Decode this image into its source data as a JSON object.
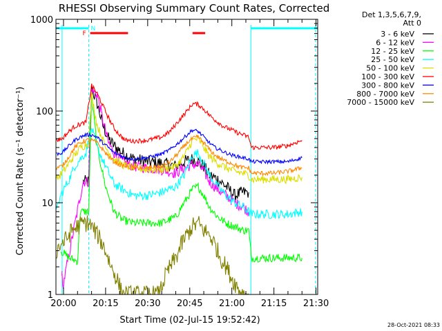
{
  "chart_data": {
    "type": "line",
    "title": "RHESSI Observing Summary Count Rates, Corrected",
    "xlabel": "Start Time (02-Jul-15 19:52:42)",
    "ylabel": "Corrected Count Rate (s⁻¹ detector⁻¹)",
    "y_scale": "log",
    "ylim": [
      1,
      1000
    ],
    "xlim_minutes": [
      -2.7,
      90.6
    ],
    "x_ticks": [
      {
        "label": "20:00",
        "min": 0
      },
      {
        "label": "20:15",
        "min": 15
      },
      {
        "label": "20:30",
        "min": 30
      },
      {
        "label": "20:45",
        "min": 45
      },
      {
        "label": "21:00",
        "min": 60
      },
      {
        "label": "21:15",
        "min": 75
      },
      {
        "label": "21:30",
        "min": 90
      }
    ],
    "y_ticks": [
      {
        "label": "1",
        "value": 1
      },
      {
        "label": "10",
        "value": 10
      },
      {
        "label": "100",
        "value": 100
      },
      {
        "label": "1000",
        "value": 1000
      }
    ],
    "legend_header": [
      "Det 1,3,5,6,7,9,",
      "Att 0"
    ],
    "legend_position": "right",
    "series": [
      {
        "name": "3 - 6 keV",
        "color": "#000000",
        "points": [
          [
            7,
            17
          ],
          [
            9,
            17
          ],
          [
            10,
            180
          ],
          [
            12,
            120
          ],
          [
            14,
            70
          ],
          [
            16,
            50
          ],
          [
            18,
            42
          ],
          [
            21,
            35
          ],
          [
            25,
            30
          ],
          [
            30,
            28
          ],
          [
            35,
            27
          ],
          [
            40,
            25
          ],
          [
            43,
            28
          ],
          [
            46,
            30
          ],
          [
            48,
            28
          ],
          [
            50,
            25
          ],
          [
            52,
            20
          ],
          [
            55,
            18
          ],
          [
            58,
            15
          ],
          [
            61,
            12
          ],
          [
            64,
            13
          ],
          [
            66,
            13
          ]
        ]
      },
      {
        "name": "6 - 12 keV",
        "color": "#ff00ff",
        "points": [
          [
            -0.5,
            1.5
          ],
          [
            -0.3,
            1.2
          ],
          [
            7,
            17
          ],
          [
            9,
            17
          ],
          [
            10,
            170
          ],
          [
            12,
            150
          ],
          [
            14,
            80
          ],
          [
            16,
            45
          ],
          [
            18,
            35
          ],
          [
            21,
            28
          ],
          [
            25,
            25
          ],
          [
            30,
            24
          ],
          [
            35,
            23
          ],
          [
            40,
            21
          ],
          [
            43,
            24
          ],
          [
            46,
            26
          ],
          [
            48,
            26
          ],
          [
            50,
            22
          ],
          [
            52,
            17
          ],
          [
            55,
            14
          ],
          [
            58,
            12
          ],
          [
            61,
            10
          ],
          [
            64,
            9
          ],
          [
            66,
            8
          ]
        ]
      },
      {
        "name": "12 - 25 keV",
        "color": "#00ff00",
        "points": [
          [
            -1,
            3
          ],
          [
            2,
            2.5
          ],
          [
            5,
            2.3
          ],
          [
            6,
            8
          ],
          [
            7,
            8
          ],
          [
            8,
            8
          ],
          [
            9,
            8
          ],
          [
            10,
            150
          ],
          [
            12,
            40
          ],
          [
            15,
            15
          ],
          [
            18,
            8
          ],
          [
            21,
            6.5
          ],
          [
            25,
            6
          ],
          [
            30,
            6
          ],
          [
            35,
            6
          ],
          [
            40,
            7
          ],
          [
            43,
            10
          ],
          [
            46,
            14
          ],
          [
            48,
            15
          ],
          [
            50,
            12
          ],
          [
            52,
            9
          ],
          [
            55,
            7
          ],
          [
            58,
            6
          ],
          [
            61,
            5.5
          ],
          [
            64,
            5
          ],
          [
            66,
            5
          ],
          [
            67,
            2.5
          ],
          [
            80,
            2.5
          ],
          [
            85,
            2.5
          ]
        ]
      },
      {
        "name": "25 - 50 keV",
        "color": "#00ffff",
        "points": [
          [
            -2.5,
            8
          ],
          [
            -1,
            12
          ],
          [
            2,
            18
          ],
          [
            4,
            25
          ],
          [
            6,
            30
          ],
          [
            8,
            35
          ],
          [
            10,
            65
          ],
          [
            12,
            40
          ],
          [
            15,
            25
          ],
          [
            18,
            16
          ],
          [
            21,
            14
          ],
          [
            25,
            12
          ],
          [
            30,
            12
          ],
          [
            35,
            13
          ],
          [
            40,
            15
          ],
          [
            43,
            20
          ],
          [
            46,
            33
          ],
          [
            48,
            35
          ],
          [
            50,
            27
          ],
          [
            52,
            20
          ],
          [
            55,
            15
          ],
          [
            58,
            12
          ],
          [
            61,
            10
          ],
          [
            64,
            9
          ],
          [
            66,
            8
          ],
          [
            67,
            7.5
          ],
          [
            80,
            7.5
          ],
          [
            85,
            8
          ]
        ]
      },
      {
        "name": "50 - 100 keV",
        "color": "#dddd00",
        "points": [
          [
            -2.5,
            18
          ],
          [
            0,
            22
          ],
          [
            3,
            30
          ],
          [
            6,
            40
          ],
          [
            9,
            45
          ],
          [
            10,
            150
          ],
          [
            12,
            70
          ],
          [
            15,
            40
          ],
          [
            18,
            30
          ],
          [
            21,
            26
          ],
          [
            25,
            24
          ],
          [
            30,
            23
          ],
          [
            35,
            23
          ],
          [
            40,
            25
          ],
          [
            43,
            32
          ],
          [
            46,
            48
          ],
          [
            48,
            50
          ],
          [
            50,
            40
          ],
          [
            52,
            32
          ],
          [
            55,
            27
          ],
          [
            58,
            24
          ],
          [
            61,
            22
          ],
          [
            64,
            21
          ],
          [
            66,
            20
          ],
          [
            67,
            18
          ],
          [
            80,
            18
          ],
          [
            85,
            19
          ]
        ]
      },
      {
        "name": "100 - 300 keV",
        "color": "#ff0000",
        "points": [
          [
            -2.5,
            48
          ],
          [
            -0.5,
            50
          ],
          [
            2,
            60
          ],
          [
            4,
            68
          ],
          [
            6,
            72
          ],
          [
            8,
            75
          ],
          [
            10,
            190
          ],
          [
            12,
            155
          ],
          [
            14,
            115
          ],
          [
            16,
            85
          ],
          [
            18,
            65
          ],
          [
            20,
            55
          ],
          [
            22,
            48
          ],
          [
            25,
            47
          ],
          [
            30,
            48
          ],
          [
            35,
            52
          ],
          [
            38,
            60
          ],
          [
            41,
            78
          ],
          [
            44,
            100
          ],
          [
            46,
            120
          ],
          [
            48,
            118
          ],
          [
            50,
            105
          ],
          [
            52,
            90
          ],
          [
            54,
            80
          ],
          [
            57,
            68
          ],
          [
            60,
            62
          ],
          [
            62,
            58
          ],
          [
            64,
            55
          ],
          [
            66,
            52
          ],
          [
            67,
            40
          ],
          [
            75,
            40
          ],
          [
            80,
            42
          ],
          [
            85,
            48
          ]
        ]
      },
      {
        "name": "300 - 800 keV",
        "color": "#0000ff",
        "points": [
          [
            -2.5,
            34
          ],
          [
            -0.5,
            35
          ],
          [
            2,
            42
          ],
          [
            4,
            48
          ],
          [
            6,
            52
          ],
          [
            8,
            55
          ],
          [
            10,
            55
          ],
          [
            12,
            52
          ],
          [
            14,
            45
          ],
          [
            16,
            40
          ],
          [
            18,
            35
          ],
          [
            20,
            33
          ],
          [
            22,
            31
          ],
          [
            25,
            30
          ],
          [
            30,
            31
          ],
          [
            35,
            34
          ],
          [
            38,
            38
          ],
          [
            41,
            45
          ],
          [
            44,
            55
          ],
          [
            46,
            62
          ],
          [
            48,
            60
          ],
          [
            50,
            52
          ],
          [
            52,
            45
          ],
          [
            54,
            40
          ],
          [
            57,
            36
          ],
          [
            60,
            33
          ],
          [
            62,
            32
          ],
          [
            64,
            31
          ],
          [
            66,
            30
          ],
          [
            67,
            28
          ],
          [
            75,
            28
          ],
          [
            80,
            28
          ],
          [
            85,
            31
          ]
        ]
      },
      {
        "name": "800 - 7000 keV",
        "color": "#ff8800",
        "points": [
          [
            -2.5,
            24
          ],
          [
            -0.5,
            25
          ],
          [
            2,
            32
          ],
          [
            4,
            40
          ],
          [
            6,
            45
          ],
          [
            8,
            48
          ],
          [
            10,
            48
          ],
          [
            12,
            45
          ],
          [
            14,
            38
          ],
          [
            16,
            32
          ],
          [
            18,
            28
          ],
          [
            20,
            26
          ],
          [
            22,
            25
          ],
          [
            25,
            24
          ],
          [
            30,
            24
          ],
          [
            35,
            25
          ],
          [
            38,
            28
          ],
          [
            41,
            35
          ],
          [
            44,
            45
          ],
          [
            46,
            50
          ],
          [
            48,
            52
          ],
          [
            50,
            45
          ],
          [
            52,
            38
          ],
          [
            54,
            33
          ],
          [
            57,
            29
          ],
          [
            60,
            27
          ],
          [
            62,
            25
          ],
          [
            64,
            24
          ],
          [
            66,
            24
          ],
          [
            67,
            21
          ],
          [
            75,
            21
          ],
          [
            80,
            22
          ],
          [
            85,
            24
          ]
        ]
      },
      {
        "name": "7000 - 15000 keV",
        "color": "#808000",
        "points": [
          [
            -2.5,
            3
          ],
          [
            -1,
            3.5
          ],
          [
            1,
            4
          ],
          [
            3,
            5
          ],
          [
            5,
            5.5
          ],
          [
            7,
            6
          ],
          [
            9,
            6
          ],
          [
            11,
            5
          ],
          [
            13,
            4
          ],
          [
            15,
            3
          ],
          [
            17,
            2
          ],
          [
            19,
            1.5
          ],
          [
            21,
            1
          ],
          [
            25,
            1
          ],
          [
            30,
            1
          ],
          [
            34,
            1
          ],
          [
            36,
            1.5
          ],
          [
            38,
            2
          ],
          [
            40,
            2.5
          ],
          [
            42,
            3.5
          ],
          [
            44,
            4.5
          ],
          [
            46,
            5.5
          ],
          [
            48,
            6
          ],
          [
            50,
            5
          ],
          [
            52,
            4.5
          ],
          [
            54,
            3.5
          ],
          [
            56,
            2.5
          ],
          [
            58,
            2
          ],
          [
            60,
            1.5
          ],
          [
            62,
            1.2
          ],
          [
            64,
            1
          ],
          [
            66,
            1
          ]
        ]
      }
    ],
    "annotations": {
      "cyan_bars": [
        {
          "start": -2.7,
          "end": 9.0
        },
        {
          "start": 66.8,
          "end": 90.6
        }
      ],
      "cyan_markers": [
        {
          "at": 9.0,
          "solid": false
        },
        {
          "at": 66.8,
          "solid": true
        },
        {
          "at": 89.8,
          "solid": false
        },
        {
          "at": -0.5,
          "solid": true
        }
      ],
      "n_label": "N",
      "f_label": "F",
      "flare_bars": [
        {
          "start": 9.5,
          "end": 23.0
        },
        {
          "start": 46.0,
          "end": 50.5
        }
      ],
      "magenta_marker": "I"
    },
    "colors": {
      "cyan": "#00ffff",
      "red": "#ff0000",
      "magenta": "#ff00ff",
      "axis": "#000000"
    }
  },
  "timestamp": "28-Oct-2021 08:33"
}
